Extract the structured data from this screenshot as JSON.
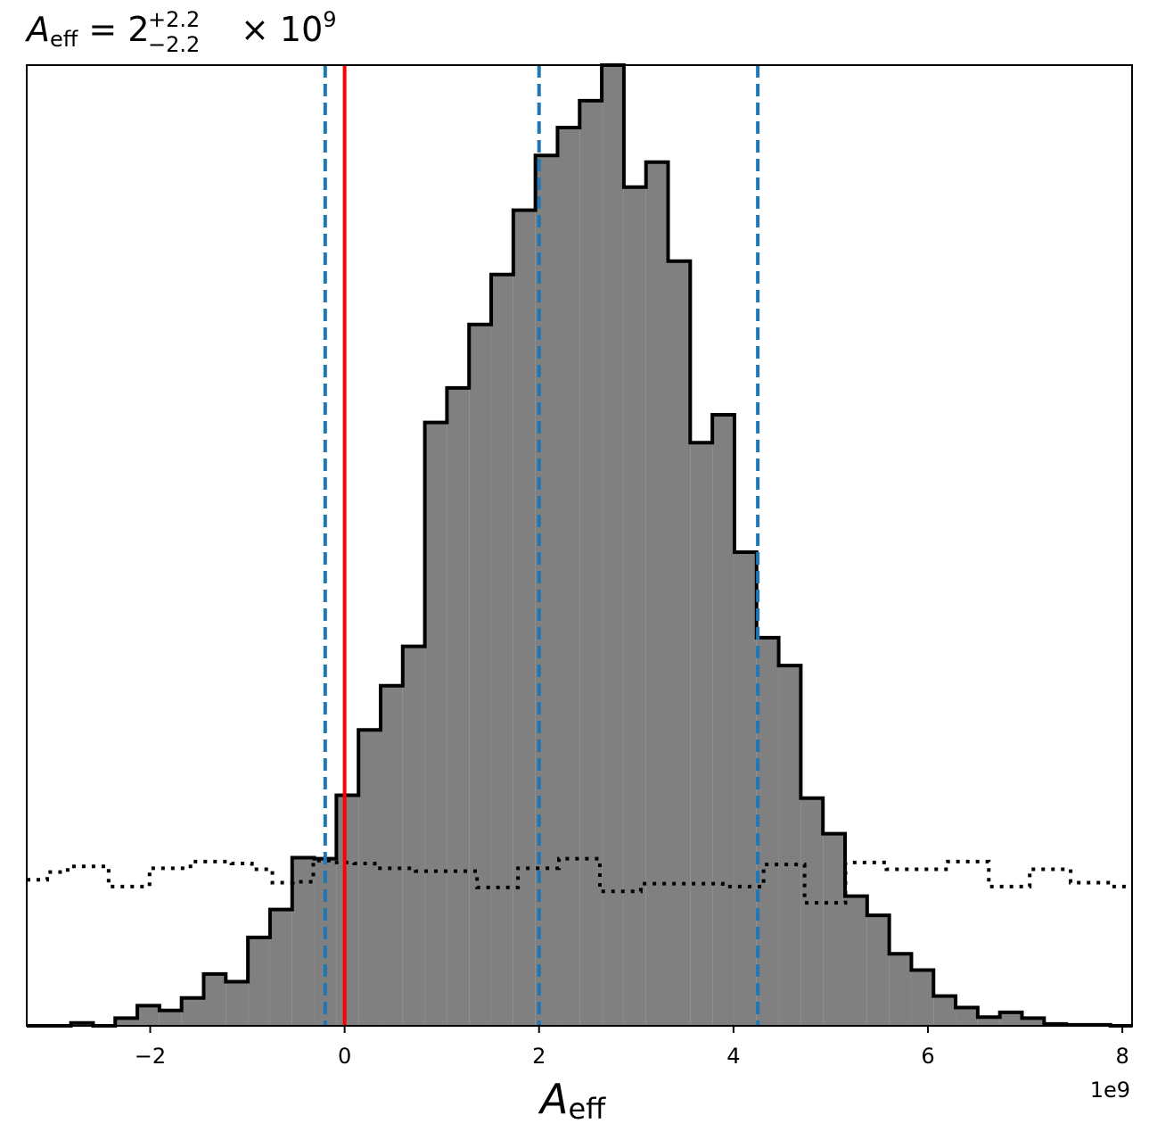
{
  "chart_data": {
    "type": "bar",
    "title": {
      "symbol": "A",
      "subscript": "eff",
      "equals": " = ",
      "median": "2",
      "plus": "+2.2",
      "minus": "−2.2",
      "multiplier": "× 10",
      "exponent": "9"
    },
    "xlabel": {
      "symbol": "A",
      "subscript": "eff"
    },
    "x_offset_label": "1e9",
    "xlim": [
      -3.27,
      8.1
    ],
    "ylim": [
      0,
      1.0
    ],
    "grid": false,
    "x_ticks": [
      {
        "value": -2,
        "label": "−2"
      },
      {
        "value": 0,
        "label": "0"
      },
      {
        "value": 2,
        "label": "2"
      },
      {
        "value": 4,
        "label": "4"
      },
      {
        "value": 6,
        "label": "6"
      },
      {
        "value": 8,
        "label": "8"
      }
    ],
    "posterior_histogram": {
      "bin_width": 0.2275,
      "bin_edges_start": -3.27,
      "heights": [
        0.0,
        0.0,
        0.003,
        0.0,
        0.008,
        0.021,
        0.016,
        0.029,
        0.054,
        0.046,
        0.092,
        0.121,
        0.175,
        0.174,
        0.24,
        0.308,
        0.354,
        0.395,
        0.628,
        0.664,
        0.73,
        0.782,
        0.849,
        0.906,
        0.935,
        0.963,
        1.0,
        0.873,
        0.899,
        0.796,
        0.607,
        0.636,
        0.493,
        0.404,
        0.375,
        0.237,
        0.2,
        0.135,
        0.115,
        0.075,
        0.058,
        0.031,
        0.019,
        0.009,
        0.014,
        0.008,
        0.002,
        0.001,
        0.001,
        0.0
      ],
      "fill_color": "#808080",
      "edge_color": "#000000"
    },
    "prior_histogram": {
      "line_style": "dotted",
      "color": "#000000",
      "heights": [
        0.152,
        0.16,
        0.166,
        0.166,
        0.145,
        0.145,
        0.164,
        0.164,
        0.171,
        0.171,
        0.169,
        0.163,
        0.149,
        0.15,
        0.172,
        0.17,
        0.169,
        0.164,
        0.164,
        0.161,
        0.161,
        0.161,
        0.144,
        0.144,
        0.164,
        0.164,
        0.174,
        0.174,
        0.14,
        0.14,
        0.148,
        0.148,
        0.148,
        0.148,
        0.145,
        0.145,
        0.168,
        0.168,
        0.128,
        0.128,
        0.17,
        0.17,
        0.163,
        0.163,
        0.163,
        0.171,
        0.171,
        0.145,
        0.145,
        0.163,
        0.163,
        0.149,
        0.149,
        0.145
      ]
    },
    "reference_lines": [
      {
        "value": 0,
        "color": "#ff0000",
        "style": "solid"
      },
      {
        "value": -0.2,
        "color": "#1f77b4",
        "style": "dashed"
      },
      {
        "value": 2.0,
        "color": "#1f77b4",
        "style": "dashed"
      },
      {
        "value": 4.25,
        "color": "#1f77b4",
        "style": "dashed"
      }
    ]
  }
}
